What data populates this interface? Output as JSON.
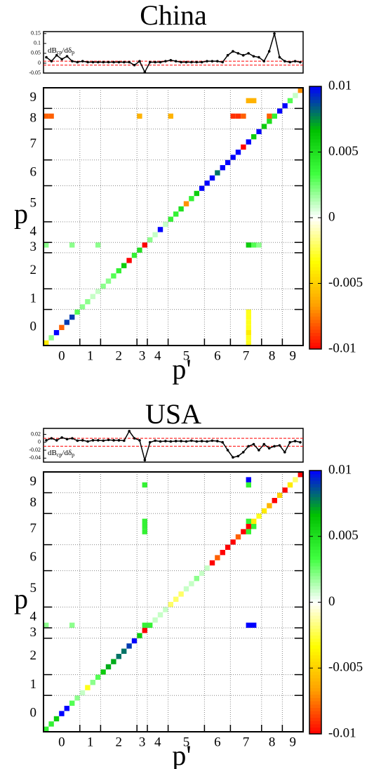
{
  "chart_data": [
    {
      "type": "line",
      "title": "China",
      "ylabel_parts": [
        "dB",
        "cp",
        "/dδ",
        "p"
      ],
      "color": "#000000",
      "hline_color": "#ff0000",
      "ylim": [
        -0.05,
        0.16
      ],
      "yticks": [
        -0.05,
        0,
        0.05,
        0.1,
        0.15
      ],
      "hlines": [
        -0.01,
        0.01
      ],
      "values": [
        0.03,
        0.01,
        0.04,
        0.02,
        0.035,
        0.01,
        0.005,
        0.01,
        0.005,
        0.005,
        0.005,
        0.005,
        0.005,
        0.005,
        0.005,
        0.005,
        0.005,
        -0.01,
        0.01,
        -0.045,
        0.005,
        0.005,
        0.005,
        0.01,
        0.015,
        0.01,
        0.005,
        0.005,
        0.005,
        0.005,
        0.005,
        0.01,
        0.01,
        0.01,
        0.005,
        0.04,
        0.06,
        0.05,
        0.04,
        0.05,
        0.035,
        0.03,
        0.01,
        0.06,
        0.15,
        0.03,
        0.01,
        0.005,
        0.01,
        0.005
      ]
    },
    {
      "type": "heatmap",
      "xlabel": "p'",
      "ylabel": "p",
      "xlim": [
        0,
        50
      ],
      "ylim": [
        0,
        50
      ],
      "xticks": [
        {
          "value": 3.5,
          "label": "0"
        },
        {
          "value": 9,
          "label": "1"
        },
        {
          "value": 14.5,
          "label": "2"
        },
        {
          "value": 19,
          "label": "3"
        },
        {
          "value": 22,
          "label": "4"
        },
        {
          "value": 27.5,
          "label": "5"
        },
        {
          "value": 33.5,
          "label": "6"
        },
        {
          "value": 39,
          "label": "7"
        },
        {
          "value": 44,
          "label": "8"
        },
        {
          "value": 48,
          "label": "9"
        }
      ],
      "yticks": [
        {
          "value": 3.5,
          "label": "0"
        },
        {
          "value": 9,
          "label": "1"
        },
        {
          "value": 14.5,
          "label": "2"
        },
        {
          "value": 19,
          "label": "3"
        },
        {
          "value": 22,
          "label": "4"
        },
        {
          "value": 27.5,
          "label": "5"
        },
        {
          "value": 33.5,
          "label": "6"
        },
        {
          "value": 39,
          "label": "7"
        },
        {
          "value": 44,
          "label": "8"
        },
        {
          "value": 48,
          "label": "9"
        }
      ],
      "separators": [
        7,
        11,
        18,
        20,
        24,
        31,
        36,
        42,
        46
      ],
      "clim": [
        -0.01,
        0.01
      ],
      "colorbar_ticks": [
        -0.01,
        -0.005,
        0,
        0.005,
        0.01
      ],
      "colormap": [
        "#ff0000",
        "#ffa000",
        "#ffff00",
        "#ffffff",
        "#40ff40",
        "#00c000",
        "#0000ff"
      ],
      "x": [
        0,
        1,
        2,
        3,
        4,
        5,
        6,
        7,
        8,
        9,
        10,
        11,
        12,
        13,
        14,
        15,
        16,
        17,
        18,
        19,
        20,
        21,
        22,
        23,
        24,
        25,
        26,
        27,
        28,
        29,
        30,
        31,
        32,
        33,
        34,
        35,
        36,
        37,
        38,
        39,
        40,
        41,
        42,
        43,
        44,
        45,
        46,
        47,
        48,
        49,
        0,
        1,
        18,
        24,
        36,
        37,
        38,
        43,
        39,
        39,
        39,
        39,
        39,
        39,
        39,
        39,
        0,
        5,
        10,
        40,
        41,
        39,
        40
      ],
      "y": [
        0,
        1,
        2,
        3,
        4,
        5,
        6,
        7,
        8,
        9,
        10,
        11,
        12,
        13,
        14,
        15,
        16,
        17,
        18,
        19,
        20,
        21,
        22,
        23,
        24,
        25,
        26,
        27,
        28,
        29,
        30,
        31,
        32,
        33,
        34,
        35,
        36,
        37,
        38,
        39,
        40,
        41,
        42,
        43,
        44,
        45,
        46,
        47,
        48,
        49,
        44,
        44,
        44,
        44,
        44,
        44,
        44,
        44,
        0,
        1,
        2,
        3,
        4,
        5,
        6,
        19,
        19,
        19,
        19,
        19,
        19,
        47,
        47
      ],
      "values": [
        -0.004,
        0.002,
        0.01,
        -0.008,
        0.009,
        0.009,
        0.003,
        0.002,
        0.002,
        0.001,
        0.001,
        0.002,
        0.002,
        0.003,
        0.004,
        0.006,
        -0.01,
        0.004,
        0.005,
        -0.01,
        0.002,
        0.001,
        0.01,
        0.001,
        0.004,
        0.004,
        0.005,
        -0.007,
        0.004,
        0.006,
        0.01,
        0.01,
        0.01,
        0.008,
        0.01,
        0.01,
        0.01,
        0.01,
        -0.01,
        0.01,
        0.006,
        0.01,
        0.006,
        0.005,
        0.004,
        0.01,
        0.01,
        0.003,
        0.001,
        -0.007,
        -0.008,
        -0.008,
        -0.006,
        -0.006,
        -0.009,
        -0.009,
        -0.008,
        -0.008,
        -0.003,
        -0.003,
        -0.004,
        -0.003,
        -0.003,
        -0.003,
        -0.003,
        0.006,
        0.002,
        0.002,
        0.002,
        0.003,
        0.002,
        -0.006,
        -0.006
      ]
    },
    {
      "type": "line",
      "title": "USA",
      "ylabel_parts": [
        "dB",
        "cp",
        "/dδ",
        "p"
      ],
      "color": "#000000",
      "hline_color": "#ff0000",
      "ylim": [
        -0.05,
        0.035
      ],
      "yticks": [
        -0.04,
        -0.02,
        0,
        0.02
      ],
      "hlines": [
        -0.01,
        0.01
      ],
      "values": [
        0.005,
        0.01,
        0.005,
        0.012,
        0.008,
        0.01,
        0.004,
        0.005,
        0.002,
        0.005,
        0.005,
        0.004,
        0.006,
        0.005,
        0.005,
        0.004,
        0.028,
        0.01,
        0.005,
        -0.045,
        0.0,
        0.004,
        0.002,
        0.003,
        0.002,
        0.003,
        0.003,
        0.002,
        0.004,
        0.002,
        0.003,
        0.002,
        0.004,
        0.003,
        0.0,
        -0.02,
        -0.038,
        -0.035,
        -0.025,
        -0.01,
        -0.005,
        -0.02,
        -0.005,
        -0.015,
        -0.01,
        -0.008,
        -0.025,
        0.0,
        0.003,
        0.0
      ]
    },
    {
      "type": "heatmap",
      "xlabel": "p'",
      "ylabel": "p",
      "xlim": [
        0,
        50
      ],
      "ylim": [
        0,
        50
      ],
      "xticks": [
        {
          "value": 3.5,
          "label": "0"
        },
        {
          "value": 9,
          "label": "1"
        },
        {
          "value": 14.5,
          "label": "2"
        },
        {
          "value": 19,
          "label": "3"
        },
        {
          "value": 22,
          "label": "4"
        },
        {
          "value": 27.5,
          "label": "5"
        },
        {
          "value": 33.5,
          "label": "6"
        },
        {
          "value": 39,
          "label": "7"
        },
        {
          "value": 44,
          "label": "8"
        },
        {
          "value": 48,
          "label": "9"
        }
      ],
      "yticks": [
        {
          "value": 3.5,
          "label": "0"
        },
        {
          "value": 9,
          "label": "1"
        },
        {
          "value": 14.5,
          "label": "2"
        },
        {
          "value": 19,
          "label": "3"
        },
        {
          "value": 22,
          "label": "4"
        },
        {
          "value": 27.5,
          "label": "5"
        },
        {
          "value": 33.5,
          "label": "6"
        },
        {
          "value": 39,
          "label": "7"
        },
        {
          "value": 44,
          "label": "8"
        },
        {
          "value": 48,
          "label": "9"
        }
      ],
      "separators": [
        7,
        11,
        18,
        20,
        24,
        31,
        36,
        42,
        46
      ],
      "clim": [
        -0.01,
        0.01
      ],
      "colorbar_ticks": [
        -0.01,
        -0.005,
        0,
        0.005,
        0.01
      ],
      "colormap": [
        "#ff0000",
        "#ffa000",
        "#ffff00",
        "#ffffff",
        "#40ff40",
        "#00c000",
        "#0000ff"
      ],
      "x": [
        0,
        1,
        2,
        3,
        4,
        5,
        6,
        7,
        8,
        9,
        10,
        11,
        12,
        13,
        14,
        15,
        16,
        17,
        18,
        19,
        20,
        21,
        22,
        23,
        24,
        25,
        26,
        27,
        28,
        29,
        30,
        31,
        32,
        33,
        34,
        35,
        36,
        37,
        38,
        39,
        40,
        41,
        42,
        43,
        44,
        45,
        46,
        47,
        48,
        49,
        0,
        5,
        19,
        39,
        40,
        19,
        19,
        19,
        19,
        39,
        39,
        40,
        39,
        39
      ],
      "y": [
        0,
        1,
        2,
        3,
        4,
        5,
        6,
        7,
        8,
        9,
        10,
        11,
        12,
        13,
        14,
        15,
        16,
        17,
        18,
        19,
        20,
        21,
        22,
        23,
        24,
        25,
        26,
        27,
        28,
        29,
        30,
        31,
        32,
        33,
        34,
        35,
        36,
        37,
        38,
        39,
        40,
        41,
        42,
        43,
        44,
        45,
        46,
        47,
        48,
        49,
        20,
        20,
        20,
        20,
        20,
        38,
        39,
        40,
        47,
        38,
        40,
        39,
        47,
        48
      ],
      "values": [
        0.004,
        0.004,
        0.006,
        0.01,
        0.01,
        0.003,
        0.002,
        0.001,
        -0.003,
        0.002,
        0.003,
        0.006,
        0.007,
        0.007,
        0.008,
        0.008,
        0.009,
        0.01,
        0.006,
        -0.01,
        0.004,
        0.001,
        0.001,
        0.001,
        -0.002,
        -0.002,
        -0.002,
        0.001,
        0.001,
        0.002,
        0.001,
        0.001,
        -0.01,
        -0.008,
        -0.01,
        -0.01,
        -0.01,
        -0.008,
        -0.01,
        -0.01,
        -0.004,
        -0.003,
        -0.004,
        -0.006,
        -0.01,
        -0.005,
        -0.01,
        -0.004,
        -0.002,
        -0.01,
        0.002,
        0.002,
        0.004,
        0.01,
        0.01,
        0.004,
        0.004,
        0.004,
        0.004,
        0.004,
        0.004,
        0.004,
        0.004,
        0.01
      ]
    }
  ]
}
